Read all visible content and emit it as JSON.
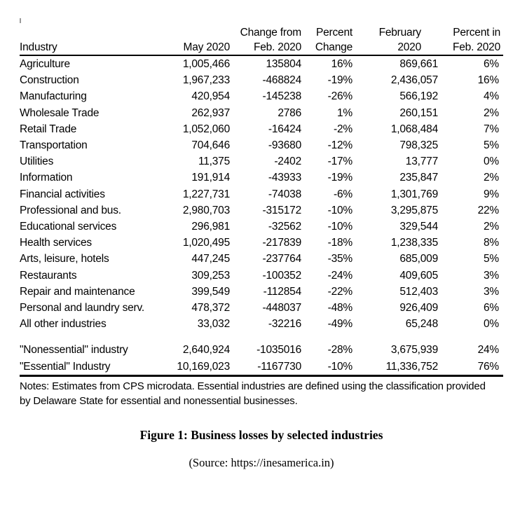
{
  "chart_data": {
    "type": "table",
    "title": "Figure 1: Business losses by selected industries",
    "columns": [
      {
        "line1": "",
        "line2": "Industry"
      },
      {
        "line1": "",
        "line2": "May 2020"
      },
      {
        "line1": "Change from",
        "line2": "Feb. 2020"
      },
      {
        "line1": "Percent",
        "line2": "Change"
      },
      {
        "line1": "February",
        "line2": "2020"
      },
      {
        "line1": "Percent in",
        "line2": "Feb. 2020"
      }
    ],
    "rows": [
      [
        "Agriculture",
        "1,005,466",
        "135804",
        "16%",
        "869,661",
        "6%"
      ],
      [
        "Construction",
        "1,967,233",
        "-468824",
        "-19%",
        "2,436,057",
        "16%"
      ],
      [
        "Manufacturing",
        "420,954",
        "-145238",
        "-26%",
        "566,192",
        "4%"
      ],
      [
        "Wholesale Trade",
        "262,937",
        "2786",
        "1%",
        "260,151",
        "2%"
      ],
      [
        "Retail Trade",
        "1,052,060",
        "-16424",
        "-2%",
        "1,068,484",
        "7%"
      ],
      [
        "Transportation",
        "704,646",
        "-93680",
        "-12%",
        "798,325",
        "5%"
      ],
      [
        "Utilities",
        "11,375",
        "-2402",
        "-17%",
        "13,777",
        "0%"
      ],
      [
        "Information",
        "191,914",
        "-43933",
        "-19%",
        "235,847",
        "2%"
      ],
      [
        "Financial activities",
        "1,227,731",
        "-74038",
        "-6%",
        "1,301,769",
        "9%"
      ],
      [
        "Professional and bus.",
        "2,980,703",
        "-315172",
        "-10%",
        "3,295,875",
        "22%"
      ],
      [
        "Educational services",
        "296,981",
        "-32562",
        "-10%",
        "329,544",
        "2%"
      ],
      [
        "Health services",
        "1,020,495",
        "-217839",
        "-18%",
        "1,238,335",
        "8%"
      ],
      [
        "Arts, leisure, hotels",
        "447,245",
        "-237764",
        "-35%",
        "685,009",
        "5%"
      ],
      [
        "Restaurants",
        "309,253",
        "-100352",
        "-24%",
        "409,605",
        "3%"
      ],
      [
        "Repair and maintenance",
        "399,549",
        "-112854",
        "-22%",
        "512,403",
        "3%"
      ],
      [
        "Personal and laundry serv.",
        "478,372",
        "-448037",
        "-48%",
        "926,409",
        "6%"
      ],
      [
        "All other industries",
        "33,032",
        "-32216",
        "-49%",
        "65,248",
        "0%"
      ]
    ],
    "summary_rows": [
      [
        "\"Nonessential\" industry",
        "2,640,924",
        "-1035016",
        "-28%",
        "3,675,939",
        "24%"
      ],
      [
        "\"Essential\" Industry",
        "10,169,023",
        "-1167730",
        "-10%",
        "11,336,752",
        "76%"
      ]
    ]
  },
  "notes": "Notes: Estimates from CPS microdata. Essential industries are defined using the classification provided by Delaware State for essential and nonessential businesses.",
  "caption": {
    "title": "Figure 1: Business losses by selected industries",
    "source": "(Source: https://inesamerica.in)"
  }
}
